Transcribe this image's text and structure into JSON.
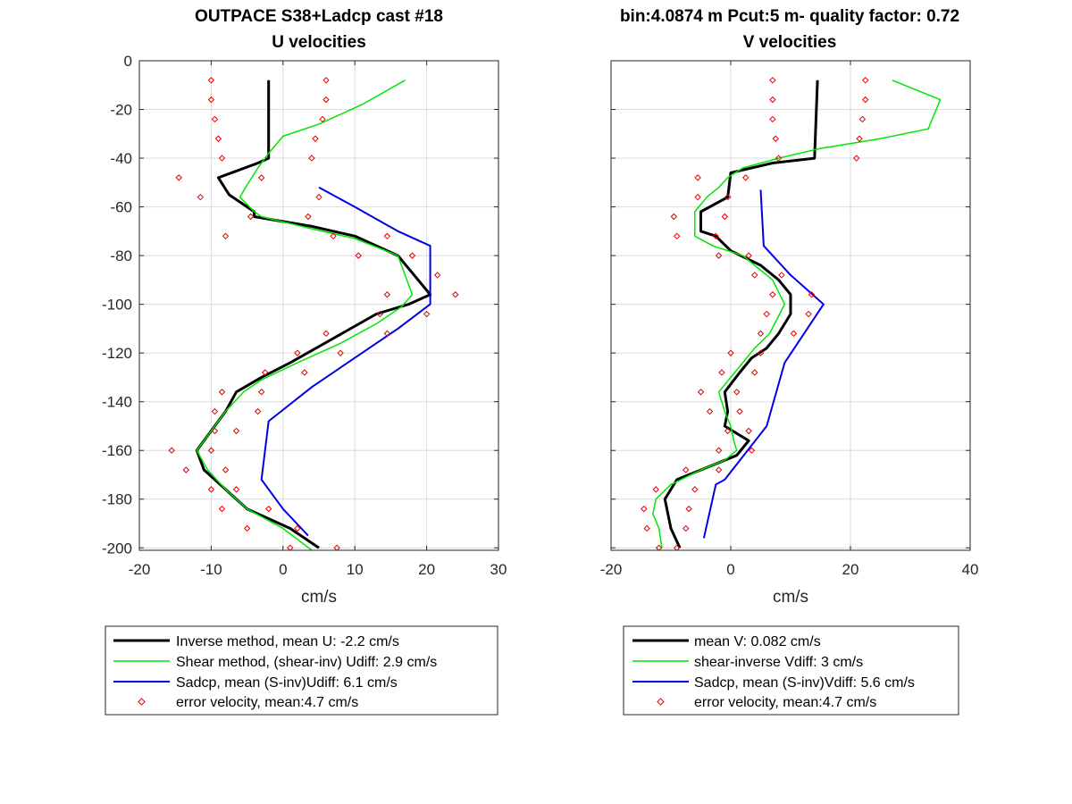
{
  "figure": {
    "left_title_line1": "OUTPACE S38+Ladcp cast #18",
    "right_title_line1": "bin:4.0874 m  Pcut:5 m- quality factor:  0.72"
  },
  "colors": {
    "inverse": "#000000",
    "shear": "#00e600",
    "sadcp": "#0000e6",
    "error": "#e60000",
    "grid": "#dcdcdc",
    "axis": "#262626"
  },
  "chart_data": [
    {
      "type": "line",
      "title": "U velocities",
      "xlabel": "cm/s",
      "ylabel": "",
      "xlim": [
        -20,
        30
      ],
      "ylim": [
        -201,
        0
      ],
      "xticks": [
        -20,
        -10,
        0,
        10,
        20,
        30
      ],
      "yticks": [
        0,
        -20,
        -40,
        -60,
        -80,
        -100,
        -120,
        -140,
        -160,
        -180,
        -200
      ],
      "grid": true,
      "legend_position": "below",
      "series": [
        {
          "name": "Inverse method, mean U:  -2.2 cm/s",
          "kind": "line",
          "points": [
            [
              -2,
              -8
            ],
            [
              -2,
              -40
            ],
            [
              -3.5,
              -42
            ],
            [
              -9,
              -48
            ],
            [
              -7.5,
              -55
            ],
            [
              -4,
              -62
            ],
            [
              -4,
              -64
            ],
            [
              4,
              -68
            ],
            [
              10,
              -72
            ],
            [
              16,
              -80
            ],
            [
              20.5,
              -96
            ],
            [
              17.5,
              -100
            ],
            [
              13,
              -104
            ],
            [
              7,
              -114
            ],
            [
              1,
              -124
            ],
            [
              -3,
              -130
            ],
            [
              -6.5,
              -136
            ],
            [
              -8,
              -144
            ],
            [
              -9,
              -148
            ],
            [
              -12,
              -160
            ],
            [
              -11,
              -168
            ],
            [
              -8,
              -176
            ],
            [
              -5,
              -184
            ],
            [
              1,
              -192
            ],
            [
              5,
              -200
            ]
          ]
        },
        {
          "name": "Shear method, (shear-inv)  Udiff:  2.9 cm/s",
          "kind": "line",
          "points": [
            [
              17,
              -8
            ],
            [
              11,
              -18
            ],
            [
              5,
              -26
            ],
            [
              0,
              -31
            ],
            [
              -2,
              -38
            ],
            [
              -3.5,
              -44
            ],
            [
              -5,
              -51
            ],
            [
              -6,
              -56
            ],
            [
              -4,
              -62
            ],
            [
              -3,
              -64
            ],
            [
              4,
              -69
            ],
            [
              10,
              -73
            ],
            [
              16,
              -80
            ],
            [
              18,
              -96
            ],
            [
              16.5,
              -101
            ],
            [
              13,
              -108
            ],
            [
              8,
              -116
            ],
            [
              2,
              -124
            ],
            [
              -3,
              -131
            ],
            [
              -5.5,
              -136
            ],
            [
              -8,
              -144
            ],
            [
              -10,
              -152
            ],
            [
              -12,
              -160
            ],
            [
              -10.5,
              -168
            ],
            [
              -8,
              -176
            ],
            [
              -5,
              -184
            ],
            [
              0,
              -192
            ],
            [
              4,
              -201
            ]
          ]
        },
        {
          "name": "Sadcp, mean (S-inv)Udiff: 6.1 cm/s",
          "kind": "line",
          "points": [
            [
              5,
              -52
            ],
            [
              10,
              -60
            ],
            [
              16,
              -70
            ],
            [
              20.5,
              -76
            ],
            [
              20.5,
              -96
            ],
            [
              20.5,
              -100
            ],
            [
              16,
              -110
            ],
            [
              10,
              -122
            ],
            [
              4,
              -134
            ],
            [
              -2,
              -148
            ],
            [
              -3,
              -172
            ],
            [
              0,
              -184
            ],
            [
              3.5,
              -195
            ]
          ]
        },
        {
          "name": "error velocity, mean:4.7 cm/s",
          "kind": "scatter",
          "points": [
            [
              -10,
              -8
            ],
            [
              6,
              -8
            ],
            [
              -10,
              -16
            ],
            [
              6,
              -16
            ],
            [
              -9.5,
              -24
            ],
            [
              5.5,
              -24
            ],
            [
              -9,
              -32
            ],
            [
              4.5,
              -32
            ],
            [
              -8.5,
              -40
            ],
            [
              4,
              -40
            ],
            [
              -14.5,
              -48
            ],
            [
              -3,
              -48
            ],
            [
              -11.5,
              -56
            ],
            [
              5,
              -56
            ],
            [
              -4.5,
              -64
            ],
            [
              3.5,
              -64
            ],
            [
              -8,
              -72
            ],
            [
              7,
              -72
            ],
            [
              14.5,
              -72
            ],
            [
              10.5,
              -80
            ],
            [
              18,
              -80
            ],
            [
              21.5,
              -88
            ],
            [
              14.5,
              -96
            ],
            [
              24,
              -96
            ],
            [
              13.5,
              -104
            ],
            [
              20,
              -104
            ],
            [
              6,
              -112
            ],
            [
              14.5,
              -112
            ],
            [
              2,
              -120
            ],
            [
              8,
              -120
            ],
            [
              -2.5,
              -128
            ],
            [
              3,
              -128
            ],
            [
              -8.5,
              -136
            ],
            [
              -3,
              -136
            ],
            [
              -9.5,
              -144
            ],
            [
              -3.5,
              -144
            ],
            [
              -9.5,
              -152
            ],
            [
              -6.5,
              -152
            ],
            [
              -15.5,
              -160
            ],
            [
              -10,
              -160
            ],
            [
              -13.5,
              -168
            ],
            [
              -8,
              -168
            ],
            [
              -10,
              -176
            ],
            [
              -6.5,
              -176
            ],
            [
              -8.5,
              -184
            ],
            [
              -2,
              -184
            ],
            [
              -5,
              -192
            ],
            [
              2,
              -192
            ],
            [
              1,
              -200
            ],
            [
              7.5,
              -200
            ]
          ]
        }
      ]
    },
    {
      "type": "line",
      "title": "V velocities",
      "xlabel": "cm/s",
      "ylabel": "",
      "xlim": [
        -20,
        40
      ],
      "ylim": [
        -201,
        0
      ],
      "xticks": [
        -20,
        0,
        20,
        40
      ],
      "yticks": [
        0,
        -20,
        -40,
        -60,
        -80,
        -100,
        -120,
        -140,
        -160,
        -180,
        -200
      ],
      "grid": true,
      "legend_position": "below",
      "series": [
        {
          "name": "mean V:  0.082 cm/s",
          "kind": "line",
          "points": [
            [
              14.5,
              -8
            ],
            [
              14,
              -40
            ],
            [
              7,
              -42
            ],
            [
              0,
              -46
            ],
            [
              -0.5,
              -56
            ],
            [
              -5,
              -62
            ],
            [
              -5,
              -70
            ],
            [
              -2.5,
              -72
            ],
            [
              0,
              -78
            ],
            [
              5,
              -84
            ],
            [
              8,
              -90
            ],
            [
              10,
              -96
            ],
            [
              10,
              -104
            ],
            [
              8,
              -112
            ],
            [
              6,
              -118
            ],
            [
              3.5,
              -122
            ],
            [
              1.5,
              -128
            ],
            [
              -1,
              -136
            ],
            [
              -0.5,
              -144
            ],
            [
              -1,
              -150
            ],
            [
              3,
              -156
            ],
            [
              1,
              -162
            ],
            [
              -3,
              -166
            ],
            [
              -9,
              -172
            ],
            [
              -11,
              -180
            ],
            [
              -10,
              -192
            ],
            [
              -8.5,
              -200
            ]
          ]
        },
        {
          "name": "shear-inverse Vdiff:  3 cm/s",
          "kind": "line",
          "points": [
            [
              27,
              -8
            ],
            [
              35,
              -16
            ],
            [
              34,
              -22
            ],
            [
              33,
              -28
            ],
            [
              25,
              -32
            ],
            [
              15,
              -36
            ],
            [
              8,
              -40
            ],
            [
              2,
              -44
            ],
            [
              -0.5,
              -48
            ],
            [
              -2,
              -52
            ],
            [
              -4,
              -56
            ],
            [
              -6,
              -62
            ],
            [
              -6,
              -72
            ],
            [
              -3,
              -76
            ],
            [
              2,
              -80
            ],
            [
              5,
              -86
            ],
            [
              7,
              -90
            ],
            [
              9,
              -100
            ],
            [
              6.5,
              -112
            ],
            [
              4,
              -118
            ],
            [
              2,
              -124
            ],
            [
              0,
              -130
            ],
            [
              -2,
              -136
            ],
            [
              -1,
              -144
            ],
            [
              0,
              -150
            ],
            [
              0.5,
              -156
            ],
            [
              1,
              -160
            ],
            [
              -1,
              -164
            ],
            [
              -5,
              -168
            ],
            [
              -10,
              -174
            ],
            [
              -12.5,
              -180
            ],
            [
              -13,
              -186
            ],
            [
              -12,
              -192
            ],
            [
              -11.5,
              -200
            ]
          ]
        },
        {
          "name": "Sadcp, mean (S-inv)Vdiff: 5.6 cm/s",
          "kind": "line",
          "points": [
            [
              5,
              -53
            ],
            [
              5.5,
              -76
            ],
            [
              10,
              -88
            ],
            [
              15.5,
              -100
            ],
            [
              9,
              -124
            ],
            [
              6,
              -150
            ],
            [
              -1,
              -172
            ],
            [
              -2.5,
              -174
            ],
            [
              -4.5,
              -196
            ]
          ]
        },
        {
          "name": "error velocity, mean:4.7 cm/s",
          "kind": "scatter",
          "points": [
            [
              7,
              -8
            ],
            [
              22.5,
              -8
            ],
            [
              7,
              -16
            ],
            [
              22.5,
              -16
            ],
            [
              7,
              -24
            ],
            [
              22,
              -24
            ],
            [
              7.5,
              -32
            ],
            [
              21.5,
              -32
            ],
            [
              8,
              -40
            ],
            [
              21,
              -40
            ],
            [
              -5.5,
              -48
            ],
            [
              2.5,
              -48
            ],
            [
              -5.5,
              -56
            ],
            [
              -0.5,
              -56
            ],
            [
              -9.5,
              -64
            ],
            [
              -1,
              -64
            ],
            [
              -9,
              -72
            ],
            [
              -2.5,
              -72
            ],
            [
              -2,
              -80
            ],
            [
              3,
              -80
            ],
            [
              8.5,
              -88
            ],
            [
              4,
              -88
            ],
            [
              13.5,
              -96
            ],
            [
              7,
              -96
            ],
            [
              13,
              -104
            ],
            [
              6,
              -104
            ],
            [
              5,
              -112
            ],
            [
              10.5,
              -112
            ],
            [
              0,
              -120
            ],
            [
              5,
              -120
            ],
            [
              -1.5,
              -128
            ],
            [
              4,
              -128
            ],
            [
              -5,
              -136
            ],
            [
              1,
              -136
            ],
            [
              -3.5,
              -144
            ],
            [
              1.5,
              -144
            ],
            [
              -0.5,
              -152
            ],
            [
              3,
              -152
            ],
            [
              -2,
              -160
            ],
            [
              3.5,
              -160
            ],
            [
              -7.5,
              -168
            ],
            [
              -2,
              -168
            ],
            [
              -12.5,
              -176
            ],
            [
              -6,
              -176
            ],
            [
              -14.5,
              -184
            ],
            [
              -7,
              -184
            ],
            [
              -14,
              -192
            ],
            [
              -7.5,
              -192
            ],
            [
              -12,
              -200
            ],
            [
              -9,
              -200
            ]
          ]
        }
      ]
    }
  ],
  "axes": [
    {
      "title_line2": "U velocities",
      "xlabel": "cm/s",
      "legend": [
        "Inverse method, mean U:  -2.2 cm/s",
        "Shear method, (shear-inv)  Udiff:  2.9 cm/s",
        "Sadcp, mean (S-inv)Udiff: 6.1 cm/s",
        "error velocity, mean:4.7 cm/s"
      ]
    },
    {
      "title_line2": "V velocities",
      "xlabel": "cm/s",
      "legend": [
        "mean V:  0.082 cm/s",
        "shear-inverse Vdiff:  3 cm/s",
        "Sadcp, mean (S-inv)Vdiff: 5.6 cm/s",
        "error velocity, mean:4.7 cm/s"
      ]
    }
  ]
}
